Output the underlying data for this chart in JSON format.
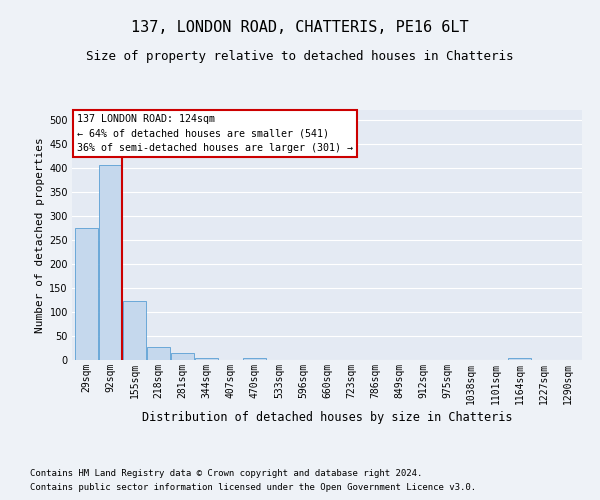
{
  "title": "137, LONDON ROAD, CHATTERIS, PE16 6LT",
  "subtitle": "Size of property relative to detached houses in Chatteris",
  "xlabel_bottom": "Distribution of detached houses by size in Chatteris",
  "ylabel": "Number of detached properties",
  "footnote1": "Contains HM Land Registry data © Crown copyright and database right 2024.",
  "footnote2": "Contains public sector information licensed under the Open Government Licence v3.0.",
  "bin_labels": [
    "29sqm",
    "92sqm",
    "155sqm",
    "218sqm",
    "281sqm",
    "344sqm",
    "407sqm",
    "470sqm",
    "533sqm",
    "596sqm",
    "660sqm",
    "723sqm",
    "786sqm",
    "849sqm",
    "912sqm",
    "975sqm",
    "1038sqm",
    "1101sqm",
    "1164sqm",
    "1227sqm",
    "1290sqm"
  ],
  "bar_values": [
    275,
    405,
    122,
    28,
    14,
    4,
    0,
    5,
    0,
    0,
    0,
    0,
    0,
    0,
    0,
    0,
    0,
    0,
    4,
    0,
    0
  ],
  "bar_color": "#c5d8ed",
  "bar_edge_color": "#5a9fd4",
  "vline_x_index": 1,
  "vline_color": "#cc0000",
  "annotation_box_text": "137 LONDON ROAD: 124sqm\n← 64% of detached houses are smaller (541)\n36% of semi-detached houses are larger (301) →",
  "annotation_box_color": "#cc0000",
  "annotation_box_face": "#ffffff",
  "ylim": [
    0,
    520
  ],
  "yticks": [
    0,
    50,
    100,
    150,
    200,
    250,
    300,
    350,
    400,
    450,
    500
  ],
  "bg_color": "#eef2f7",
  "plot_bg_color": "#e4eaf3",
  "grid_color": "#ffffff",
  "title_fontsize": 11,
  "subtitle_fontsize": 9,
  "tick_fontsize": 7,
  "ylabel_fontsize": 8,
  "xlabel_fontsize": 8.5
}
